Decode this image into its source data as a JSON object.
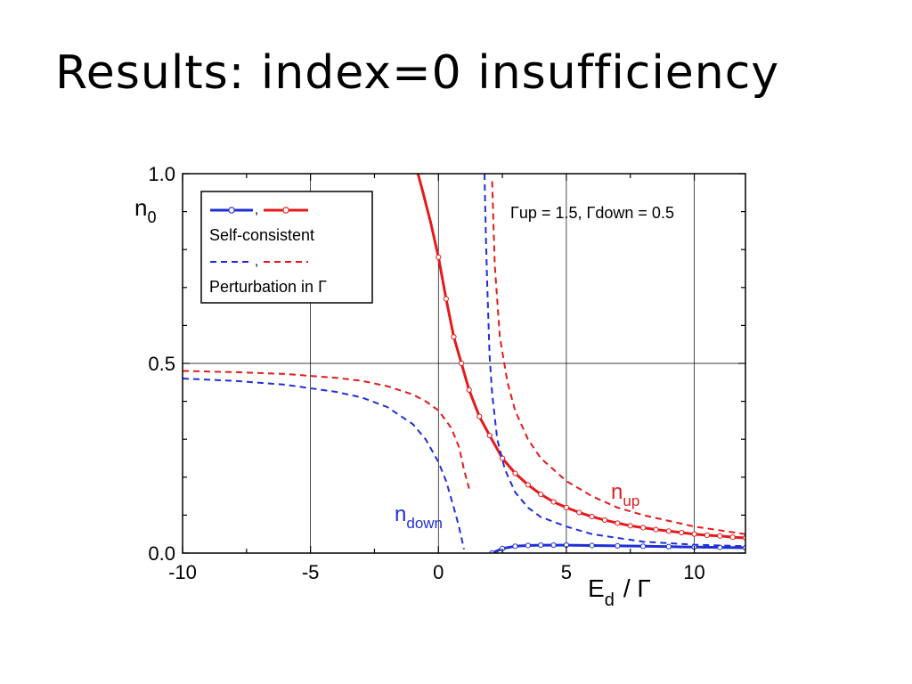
{
  "slide": {
    "title": "Results: index=0 insufficiency"
  },
  "chart_data": {
    "type": "line",
    "title": "",
    "xlabel_main": "E",
    "xlabel_sub": "d",
    "xlabel_tail": "/ Γ",
    "ylabel_main": "n",
    "ylabel_sub": "0",
    "xlim": [
      -10,
      12
    ],
    "ylim": [
      0,
      1.0
    ],
    "xticks": [
      -10,
      -5,
      0,
      5,
      10
    ],
    "yticks": [
      0.0,
      0.5,
      1.0
    ],
    "ytick_labels": [
      "0.0",
      "0.5",
      "1.0"
    ],
    "grid": true,
    "annotation": "Γup = 1.5, Γdown = 0.5",
    "curve_labels": {
      "up": {
        "main": "n",
        "sub": "up"
      },
      "down": {
        "main": "n",
        "sub": "down"
      }
    },
    "legend": {
      "placement": "top-left",
      "comma": ",",
      "self_consistent": "Self-consistent",
      "perturbation": "Perturbation in Γ"
    },
    "colors": {
      "up": "#e41a1c",
      "down": "#1f2fd6"
    },
    "series": [
      {
        "group": "Self-consistent",
        "spin": "up",
        "style": "solid",
        "x": [
          -0.8,
          -0.6,
          -0.3,
          0,
          0.3,
          0.6,
          0.9,
          1.2,
          1.6,
          2.0,
          2.5,
          3.0,
          3.5,
          4.0,
          4.5,
          5.0,
          5.5,
          6.0,
          6.5,
          7.0,
          7.5,
          8.0,
          8.5,
          9.0,
          9.5,
          10.0,
          10.5,
          11.0,
          11.5,
          12.0
        ],
        "y": [
          1.0,
          0.95,
          0.87,
          0.78,
          0.67,
          0.57,
          0.5,
          0.43,
          0.36,
          0.31,
          0.25,
          0.21,
          0.18,
          0.155,
          0.135,
          0.12,
          0.107,
          0.096,
          0.087,
          0.079,
          0.072,
          0.067,
          0.062,
          0.058,
          0.054,
          0.05,
          0.047,
          0.045,
          0.042,
          0.04
        ]
      },
      {
        "group": "Self-consistent",
        "spin": "down",
        "style": "solid",
        "x": [
          2.1,
          2.5,
          3.0,
          3.5,
          4.0,
          4.5,
          5.0,
          6.0,
          7.0,
          8.0,
          9.0,
          10.0,
          11.0,
          12.0
        ],
        "y": [
          0.0,
          0.012,
          0.018,
          0.02,
          0.021,
          0.021,
          0.021,
          0.02,
          0.019,
          0.018,
          0.017,
          0.016,
          0.015,
          0.014
        ]
      },
      {
        "group": "Perturbation in Γ",
        "spin": "up",
        "style": "dashed",
        "x": [
          -10,
          -8,
          -6,
          -4,
          -3,
          -2,
          -1,
          -0.5,
          0,
          0.5,
          0.8,
          1.0,
          1.2
        ],
        "y": [
          0.48,
          0.477,
          0.472,
          0.462,
          0.454,
          0.44,
          0.418,
          0.4,
          0.376,
          0.33,
          0.28,
          0.22,
          0.17
        ]
      },
      {
        "group": "Perturbation in Γ",
        "spin": "up",
        "style": "dashed",
        "x": [
          2.1,
          2.2,
          2.4,
          2.7,
          3.0,
          3.5,
          4.0,
          5.0,
          6.0,
          7.0,
          8.0,
          10.0,
          12.0
        ],
        "y": [
          0.98,
          0.76,
          0.57,
          0.45,
          0.375,
          0.3,
          0.25,
          0.19,
          0.15,
          0.12,
          0.1,
          0.07,
          0.05
        ]
      },
      {
        "group": "Perturbation in Γ",
        "spin": "down",
        "style": "dashed",
        "x": [
          -10,
          -8,
          -6,
          -4,
          -3,
          -2,
          -1,
          -0.5,
          0,
          0.3,
          0.6,
          0.8,
          1.0
        ],
        "y": [
          0.46,
          0.454,
          0.444,
          0.425,
          0.41,
          0.385,
          0.34,
          0.3,
          0.24,
          0.19,
          0.12,
          0.07,
          0.01
        ]
      },
      {
        "group": "Perturbation in Γ",
        "spin": "down",
        "style": "dashed",
        "x": [
          1.8,
          1.85,
          1.9,
          2.0,
          2.1,
          2.3,
          2.6,
          3.0,
          3.5,
          4.0,
          5.0,
          6.0,
          7.0,
          8.0,
          10.0,
          12.0
        ],
        "y": [
          1.0,
          0.85,
          0.72,
          0.52,
          0.42,
          0.3,
          0.22,
          0.16,
          0.12,
          0.095,
          0.07,
          0.05,
          0.04,
          0.03,
          0.022,
          0.018
        ]
      }
    ]
  }
}
